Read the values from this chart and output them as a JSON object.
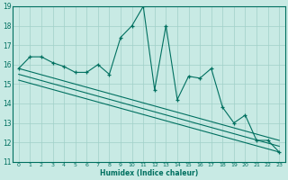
{
  "xlabel": "Humidex (Indice chaleur)",
  "xlim": [
    -0.5,
    23.5
  ],
  "ylim": [
    11,
    19
  ],
  "yticks": [
    11,
    12,
    13,
    14,
    15,
    16,
    17,
    18,
    19
  ],
  "xticks": [
    0,
    1,
    2,
    3,
    4,
    5,
    6,
    7,
    8,
    9,
    10,
    11,
    12,
    13,
    14,
    15,
    16,
    17,
    18,
    19,
    20,
    21,
    22,
    23
  ],
  "bg_color": "#c8eae4",
  "grid_color": "#a0d0c8",
  "line_color": "#007060",
  "main_line_x": [
    0,
    1,
    2,
    3,
    4,
    5,
    6,
    7,
    8,
    9,
    10,
    11,
    12,
    13,
    14,
    15,
    16,
    17,
    18,
    19,
    20,
    21,
    22,
    23
  ],
  "main_line_y": [
    15.8,
    16.4,
    16.4,
    16.1,
    15.9,
    15.6,
    15.6,
    16.0,
    15.5,
    17.4,
    18.0,
    19.0,
    14.7,
    18.0,
    14.2,
    15.4,
    15.3,
    15.8,
    13.8,
    13.0,
    13.4,
    12.1,
    12.1,
    11.5
  ],
  "trend_lines": [
    {
      "x": [
        0,
        23
      ],
      "y": [
        15.8,
        12.1
      ]
    },
    {
      "x": [
        0,
        23
      ],
      "y": [
        15.5,
        11.8
      ]
    },
    {
      "x": [
        0,
        23
      ],
      "y": [
        15.2,
        11.5
      ]
    }
  ]
}
